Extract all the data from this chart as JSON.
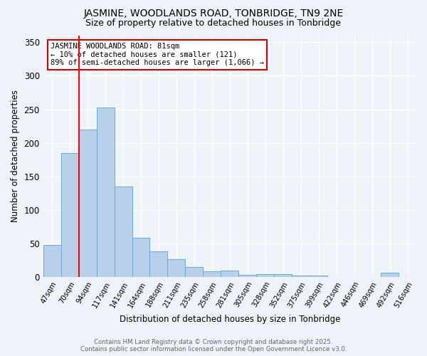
{
  "title_line1": "JASMINE, WOODLANDS ROAD, TONBRIDGE, TN9 2NE",
  "title_line2": "Size of property relative to detached houses in Tonbridge",
  "xlabel": "Distribution of detached houses by size in Tonbridge",
  "ylabel": "Number of detached properties",
  "categories": [
    "47sqm",
    "70sqm",
    "94sqm",
    "117sqm",
    "141sqm",
    "164sqm",
    "188sqm",
    "211sqm",
    "235sqm",
    "258sqm",
    "281sqm",
    "305sqm",
    "328sqm",
    "352sqm",
    "375sqm",
    "399sqm",
    "422sqm",
    "446sqm",
    "469sqm",
    "492sqm",
    "516sqm"
  ],
  "values": [
    48,
    185,
    220,
    253,
    135,
    58,
    38,
    26,
    15,
    8,
    9,
    3,
    4,
    4,
    2,
    2,
    0,
    0,
    0,
    6,
    0
  ],
  "bar_color": "#b8d0ea",
  "bar_edge_color": "#6aaad4",
  "background_color": "#eef2f9",
  "grid_color": "#ffffff",
  "red_line_x": 1.5,
  "annotation_text": "JASMINE WOODLANDS ROAD: 81sqm\n← 10% of detached houses are smaller (121)\n89% of semi-detached houses are larger (1,066) →",
  "annotation_box_color": "#ffffff",
  "annotation_box_edge_color": "#cc0000",
  "ylim": [
    0,
    360
  ],
  "yticks": [
    0,
    50,
    100,
    150,
    200,
    250,
    300,
    350
  ],
  "footer_line1": "Contains HM Land Registry data © Crown copyright and database right 2025.",
  "footer_line2": "Contains public sector information licensed under the Open Government Licence v3.0."
}
